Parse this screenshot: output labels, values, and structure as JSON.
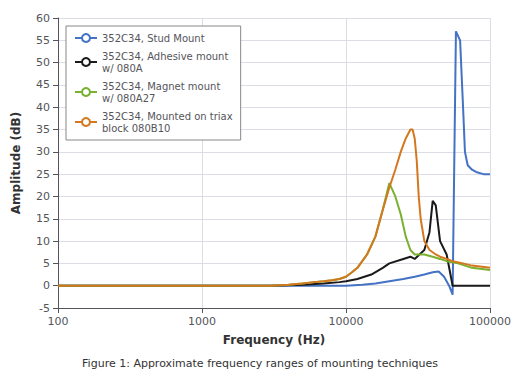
{
  "chart_data": {
    "type": "line",
    "title": "Figure 1: Approximate frequency ranges of mounting techniques",
    "xlabel": "Frequency (Hz)",
    "ylabel": "Amplitude (dB)",
    "log": "x",
    "xlim": [
      100,
      100000
    ],
    "xticks": [
      100,
      1000,
      10000,
      100000
    ],
    "ylim": [
      -5,
      60
    ],
    "yticks": [
      -5,
      0,
      5,
      10,
      15,
      20,
      25,
      30,
      35,
      40,
      45,
      50,
      55,
      60
    ],
    "grid": true,
    "legend": "upper left",
    "series": [
      {
        "name": "352C34, Stud Mount",
        "color": "#4472C4",
        "x": [
          100,
          500,
          1000,
          2000,
          3000,
          5000,
          7000,
          10000,
          13000,
          16000,
          20000,
          25000,
          30000,
          35000,
          40000,
          44000,
          48000,
          52000,
          55000,
          58000,
          62000,
          65000,
          67000,
          70000,
          75000,
          80000,
          90000,
          100000
        ],
        "values": [
          0,
          0,
          0,
          0,
          0,
          0,
          0,
          0,
          0.2,
          0.5,
          1,
          1.5,
          2,
          2.5,
          3,
          3.2,
          2,
          0,
          -2,
          57,
          55,
          40,
          30,
          27,
          26,
          25.5,
          25,
          25
        ]
      },
      {
        "name": "352C34, Adhesive mount\nw/ 080A",
        "color": "#1a1a1a",
        "x": [
          100,
          500,
          1000,
          2000,
          3000,
          5000,
          7000,
          9000,
          10000,
          12000,
          15000,
          18000,
          20000,
          25000,
          28000,
          30000,
          35000,
          38000,
          40000,
          42000,
          45000,
          50000,
          55000,
          65000,
          75000,
          100000
        ],
        "values": [
          0,
          0,
          0,
          0,
          0,
          0.2,
          0.5,
          0.8,
          1,
          1.5,
          2.5,
          4,
          5,
          6,
          6.5,
          6,
          8,
          12,
          19,
          18,
          10,
          7,
          0,
          0,
          0,
          0
        ]
      },
      {
        "name": "352C34, Magnet mount\nw/ 080A27",
        "color": "#7ab030",
        "x": [
          100,
          500,
          1000,
          2000,
          3000,
          4000,
          5000,
          6000,
          7000,
          8000,
          9000,
          10000,
          11000,
          12000,
          14000,
          16000,
          18000,
          20000,
          22000,
          24000,
          26000,
          28000,
          30000,
          35000,
          40000,
          45000,
          50000,
          60000,
          75000,
          100000
        ],
        "values": [
          0,
          0,
          0,
          0,
          0,
          0.2,
          0.5,
          0.8,
          1,
          1.2,
          1.5,
          2,
          3,
          4,
          7,
          11,
          17,
          23,
          20,
          16,
          11,
          8,
          7,
          7,
          6.5,
          6,
          5.5,
          5,
          4,
          3.5
        ]
      },
      {
        "name": "352C34, Mounted on triax\nblock 080B10",
        "color": "#d47820",
        "x": [
          100,
          500,
          1000,
          2000,
          3000,
          4000,
          5000,
          6000,
          7000,
          8000,
          9000,
          10000,
          11000,
          12000,
          14000,
          16000,
          18000,
          20000,
          22000,
          24000,
          26000,
          28000,
          29000,
          30000,
          31000,
          32000,
          33000,
          35000,
          38000,
          40000,
          42000,
          45000,
          50000,
          55000,
          65000,
          75000,
          100000
        ],
        "values": [
          0,
          0,
          0,
          0,
          0,
          0.2,
          0.5,
          0.8,
          1,
          1.2,
          1.5,
          2,
          3,
          4,
          7,
          11,
          17,
          22,
          26,
          30,
          33,
          35,
          35,
          33,
          28,
          20,
          15,
          10,
          8,
          7.5,
          7,
          6.5,
          6,
          5.5,
          5,
          4.5,
          4
        ]
      }
    ]
  }
}
